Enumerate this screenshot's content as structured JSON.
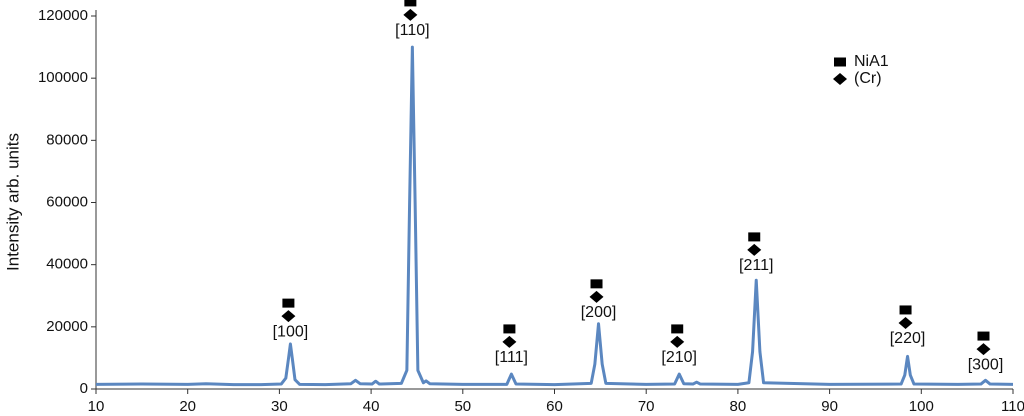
{
  "chart_data": {
    "type": "line",
    "y_label": "Intensity arb. units",
    "xlim": [
      10,
      110
    ],
    "ylim": [
      0,
      120000
    ],
    "xticks": [
      10,
      20,
      30,
      40,
      50,
      60,
      70,
      80,
      90,
      100,
      110
    ],
    "yticks": [
      0,
      20000,
      40000,
      60000,
      80000,
      100000,
      120000
    ],
    "grid": false,
    "legend_position": "top-right",
    "legend": [
      {
        "marker": "square",
        "label": "NiA1"
      },
      {
        "marker": "diamond",
        "label": "(Cr)"
      }
    ],
    "x": [
      10,
      15,
      20,
      22,
      25,
      28,
      30.2,
      30.7,
      31.0,
      31.2,
      31.4,
      31.7,
      32.2,
      35,
      37.8,
      38.3,
      38.8,
      40.1,
      40.5,
      40.9,
      43.3,
      43.9,
      44.2,
      44.5,
      44.8,
      45.1,
      45.7,
      46,
      46.4,
      50,
      54.8,
      55.3,
      55.8,
      60,
      64.0,
      64.4,
      64.8,
      65.2,
      65.6,
      70,
      73.1,
      73.6,
      74.1,
      75.1,
      75.5,
      75.9,
      80,
      81.2,
      81.6,
      82.0,
      82.4,
      82.8,
      90,
      97.8,
      98.2,
      98.5,
      98.8,
      99.2,
      104,
      106.5,
      107,
      107.5,
      110
    ],
    "series": [
      {
        "color": "#5b87c0",
        "values": [
          1500,
          1600,
          1500,
          1700,
          1400,
          1400,
          1600,
          3500,
          10000,
          14500,
          10000,
          3000,
          1500,
          1400,
          1700,
          2800,
          1700,
          1600,
          2500,
          1600,
          1800,
          6000,
          60000,
          110000,
          60000,
          6000,
          2000,
          2600,
          1700,
          1500,
          1500,
          4800,
          1600,
          1400,
          1800,
          8000,
          21000,
          8000,
          1800,
          1500,
          1600,
          4800,
          1700,
          1600,
          2200,
          1600,
          1500,
          2000,
          12000,
          35000,
          12000,
          2000,
          1500,
          1600,
          4500,
          10500,
          4500,
          1600,
          1500,
          1600,
          2800,
          1600,
          1500
        ]
      }
    ],
    "annotations": [
      {
        "text": "[100]",
        "x": 31.2,
        "y": 18300
      },
      {
        "text": "[110]",
        "x": 44.5,
        "y": 115200
      },
      {
        "text": "[111]",
        "x": 55.3,
        "y": 10000
      },
      {
        "text": "[200]",
        "x": 64.8,
        "y": 24500
      },
      {
        "text": "[210]",
        "x": 73.6,
        "y": 10000
      },
      {
        "text": "[211]",
        "x": 82,
        "y": 39600
      },
      {
        "text": "[220]",
        "x": 98.5,
        "y": 16100
      },
      {
        "text": "[300]",
        "x": 107,
        "y": 7700
      }
    ]
  }
}
